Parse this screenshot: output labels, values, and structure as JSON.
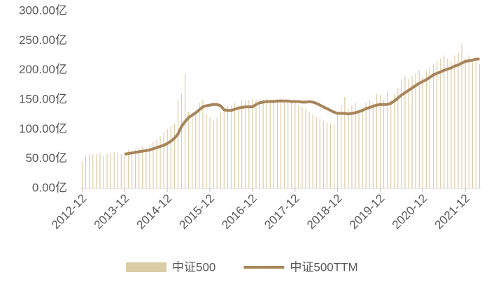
{
  "chart_data": {
    "type": "bar_line",
    "categories": [
      "2012-12",
      null,
      null,
      null,
      null,
      null,
      null,
      null,
      null,
      null,
      null,
      null,
      "2013-12",
      null,
      null,
      null,
      null,
      null,
      null,
      null,
      null,
      null,
      null,
      null,
      "2014-12",
      null,
      null,
      null,
      null,
      null,
      null,
      null,
      null,
      null,
      null,
      null,
      "2015-12",
      null,
      null,
      null,
      null,
      null,
      null,
      null,
      null,
      null,
      null,
      null,
      "2016-12",
      null,
      null,
      null,
      null,
      null,
      null,
      null,
      null,
      null,
      null,
      null,
      "2017-12",
      null,
      null,
      null,
      null,
      null,
      null,
      null,
      null,
      null,
      null,
      null,
      "2018-12",
      null,
      null,
      null,
      null,
      null,
      null,
      null,
      null,
      null,
      null,
      null,
      "2019-12",
      null,
      null,
      null,
      null,
      null,
      null,
      null,
      null,
      null,
      null,
      null,
      "2020-12",
      null,
      null,
      null,
      null,
      null,
      null,
      null,
      null,
      null,
      null,
      null,
      "2021-12",
      null,
      null,
      null,
      null
    ],
    "series": [
      {
        "name": "中证500",
        "color": "#dccca6",
        "kind": "bar",
        "values": [
          45,
          55,
          58,
          57,
          58,
          60,
          55,
          58,
          60,
          62,
          60,
          58,
          62,
          65,
          63,
          66,
          68,
          70,
          68,
          72,
          78,
          82,
          88,
          95,
          100,
          105,
          110,
          150,
          160,
          195,
          130,
          125,
          130,
          145,
          150,
          125,
          120,
          115,
          120,
          130,
          135,
          140,
          140,
          145,
          140,
          150,
          148,
          150,
          152,
          150,
          148,
          150,
          152,
          150,
          150,
          148,
          152,
          150,
          150,
          148,
          145,
          140,
          138,
          135,
          130,
          125,
          120,
          118,
          115,
          112,
          110,
          108,
          130,
          140,
          155,
          135,
          140,
          145,
          130,
          135,
          145,
          150,
          145,
          160,
          158,
          150,
          165,
          150,
          160,
          170,
          185,
          190,
          185,
          190,
          195,
          200,
          190,
          200,
          205,
          210,
          215,
          220,
          225,
          220,
          215,
          225,
          230,
          245,
          220,
          225,
          215,
          220,
          210
        ]
      },
      {
        "name": "中证500TTM",
        "color": "#a8845a",
        "kind": "line",
        "values": [
          null,
          null,
          null,
          null,
          null,
          null,
          null,
          null,
          null,
          null,
          null,
          null,
          58,
          59,
          60,
          61,
          62,
          63,
          64,
          65,
          67,
          69,
          71,
          73,
          76,
          80,
          85,
          92,
          105,
          113,
          120,
          124,
          128,
          133,
          138,
          140,
          141,
          142,
          142,
          140,
          133,
          132,
          132,
          134,
          136,
          137,
          138,
          138,
          138,
          142,
          145,
          146,
          147,
          147,
          147,
          148,
          148,
          148,
          148,
          147,
          147,
          147,
          146,
          146,
          147,
          146,
          144,
          141,
          138,
          135,
          132,
          129,
          127,
          127,
          127,
          126,
          127,
          128,
          130,
          132,
          135,
          137,
          139,
          141,
          142,
          142,
          142,
          144,
          148,
          153,
          158,
          162,
          166,
          170,
          174,
          178,
          181,
          184,
          188,
          192,
          195,
          197,
          200,
          202,
          204,
          207,
          209,
          212,
          215,
          216,
          217,
          219,
          219
        ]
      }
    ],
    "ylim": [
      0,
      300
    ],
    "yticks": [
      {
        "value": 0,
        "label": "0.00亿"
      },
      {
        "value": 50,
        "label": "50.00亿"
      },
      {
        "value": 100,
        "label": "100.00亿"
      },
      {
        "value": 150,
        "label": "150.00亿"
      },
      {
        "value": 200,
        "label": "200.00亿"
      },
      {
        "value": 250,
        "label": "250.00亿"
      },
      {
        "value": 300,
        "label": "300.00亿"
      }
    ],
    "legend": "bottom"
  }
}
